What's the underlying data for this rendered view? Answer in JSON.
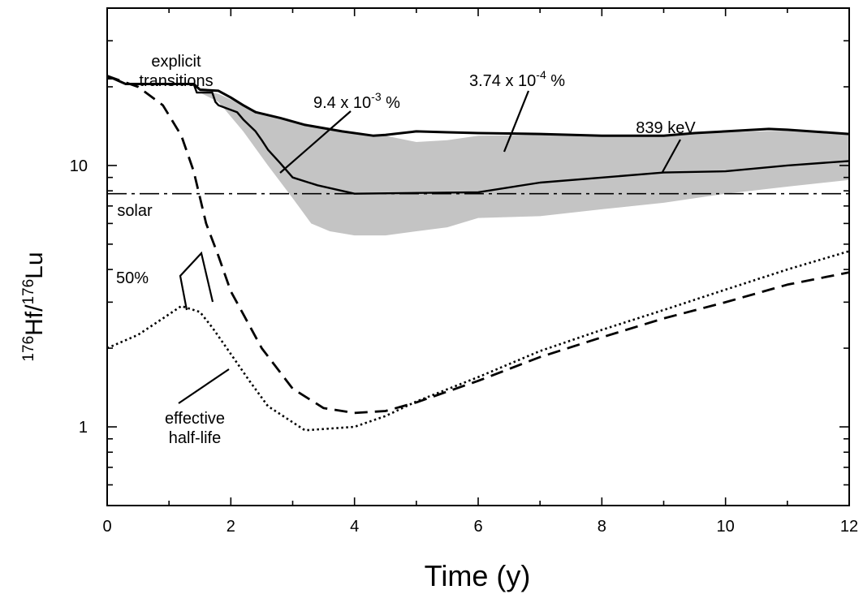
{
  "chart_data": {
    "type": "line",
    "xlabel": "Time (y)",
    "ylabel": {
      "sup1": "176",
      "t1": "Hf/",
      "sup2": "176",
      "t2": "Lu"
    },
    "xlim": [
      0,
      12
    ],
    "ylim": [
      0.5,
      40
    ],
    "yscale": "log",
    "xticks": [
      0,
      2,
      4,
      6,
      8,
      10,
      12
    ],
    "yticks_labeled": [
      1,
      10
    ],
    "grid": false,
    "series": [
      {
        "name": "explicit transitions",
        "style": "solid-thin",
        "color": "#000000",
        "x": [
          0,
          0.1,
          0.3,
          1.4,
          1.45,
          1.7,
          1.75,
          1.8,
          2.1,
          2.2,
          2.4,
          2.5,
          2.6,
          2.8,
          3.0,
          3.4,
          3.9,
          4.0,
          6.0,
          7.0,
          9.0,
          10.0,
          11.0,
          12.0
        ],
        "y": [
          21.5,
          21.5,
          20.5,
          20.5,
          19.0,
          19.0,
          17.5,
          17.0,
          16.0,
          15.0,
          13.5,
          12.5,
          11.5,
          10.2,
          9.0,
          8.4,
          7.9,
          7.8,
          7.9,
          8.6,
          9.4,
          9.5,
          10.0,
          10.4
        ]
      },
      {
        "name": "839 keV",
        "style": "solid-thick",
        "color": "#000000",
        "x": [
          0,
          0.1,
          0.3,
          1.4,
          1.5,
          1.8,
          2.0,
          2.2,
          2.4,
          2.8,
          3.2,
          3.8,
          4.3,
          4.5,
          5.0,
          5.5,
          6.0,
          7.0,
          8.0,
          9.0,
          9.5,
          10.0,
          10.7,
          11.0,
          12.0
        ],
        "y": [
          22.0,
          21.5,
          20.5,
          20.5,
          19.5,
          19.3,
          18.2,
          17.0,
          16.0,
          15.2,
          14.3,
          13.5,
          13.0,
          13.1,
          13.5,
          13.4,
          13.3,
          13.2,
          13.0,
          13.0,
          13.3,
          13.5,
          13.8,
          13.7,
          13.2
        ]
      },
      {
        "name": "50%",
        "style": "dashed",
        "color": "#000000",
        "x": [
          0,
          0.5,
          0.9,
          1.2,
          1.4,
          1.6,
          1.8,
          2.0,
          2.2,
          2.5,
          3.0,
          3.5,
          4.0,
          4.5,
          5.0,
          6.0,
          7.0,
          8.0,
          9.0,
          10.0,
          11.0,
          12.0
        ],
        "y": [
          22.0,
          20.0,
          17.0,
          13.0,
          9.5,
          6.0,
          4.5,
          3.3,
          2.7,
          2.0,
          1.4,
          1.18,
          1.13,
          1.15,
          1.24,
          1.5,
          1.85,
          2.2,
          2.6,
          3.0,
          3.5,
          3.9
        ]
      },
      {
        "name": "effective half-life",
        "style": "dotted",
        "color": "#000000",
        "x": [
          0,
          0.5,
          0.9,
          1.2,
          1.5,
          1.7,
          2.0,
          2.3,
          2.6,
          3.2,
          4.0,
          4.5,
          5.0,
          6.0,
          7.0,
          8.0,
          9.0,
          10.0,
          11.0,
          12.0
        ],
        "y": [
          2.0,
          2.25,
          2.6,
          2.9,
          2.75,
          2.4,
          1.9,
          1.5,
          1.2,
          0.97,
          1.0,
          1.1,
          1.25,
          1.55,
          1.95,
          2.35,
          2.8,
          3.35,
          4.0,
          4.7
        ]
      },
      {
        "name": "solar",
        "style": "dash-dot",
        "color": "#000000",
        "x": [
          0,
          12
        ],
        "y": [
          7.8,
          7.8
        ]
      }
    ],
    "band": {
      "fill": "#c4c4c4",
      "upper": {
        "x": [
          1.5,
          1.8,
          2.2,
          2.6,
          3.0,
          3.5,
          4.0,
          4.5,
          5.0,
          5.5,
          6.0,
          7.0,
          8.0,
          9.0,
          10.0,
          11.0,
          12.0
        ],
        "y": [
          19.5,
          18.8,
          17.0,
          15.5,
          14.6,
          14.0,
          13.3,
          13.0,
          12.3,
          12.5,
          13.0,
          13.1,
          13.0,
          13.0,
          13.4,
          13.6,
          13.2
        ]
      },
      "lower": {
        "x": [
          1.5,
          1.8,
          2.2,
          2.6,
          3.0,
          3.3,
          3.6,
          4.0,
          4.5,
          5.0,
          5.5,
          6.0,
          7.0,
          8.0,
          9.0,
          10.0,
          11.0,
          12.0
        ],
        "y": [
          19.0,
          17.5,
          13.5,
          10.0,
          7.5,
          6.0,
          5.6,
          5.4,
          5.4,
          5.6,
          5.8,
          6.3,
          6.4,
          6.8,
          7.2,
          7.8,
          8.3,
          8.8
        ]
      }
    },
    "annotations": [
      {
        "key": "explicit",
        "lines": [
          "explicit",
          "transitions"
        ]
      },
      {
        "key": "pct1",
        "base": "9.4 x 10",
        "sup": "-3",
        "tail": " %"
      },
      {
        "key": "pct2",
        "base": "3.74 x 10",
        "sup": "-4",
        "tail": " %"
      },
      {
        "key": "kev",
        "lines": [
          "839 keV"
        ]
      },
      {
        "key": "solar",
        "lines": [
          "solar"
        ]
      },
      {
        "key": "fifty",
        "lines": [
          "50%"
        ]
      },
      {
        "key": "ehl",
        "lines": [
          "effective",
          "half-life"
        ]
      }
    ]
  }
}
